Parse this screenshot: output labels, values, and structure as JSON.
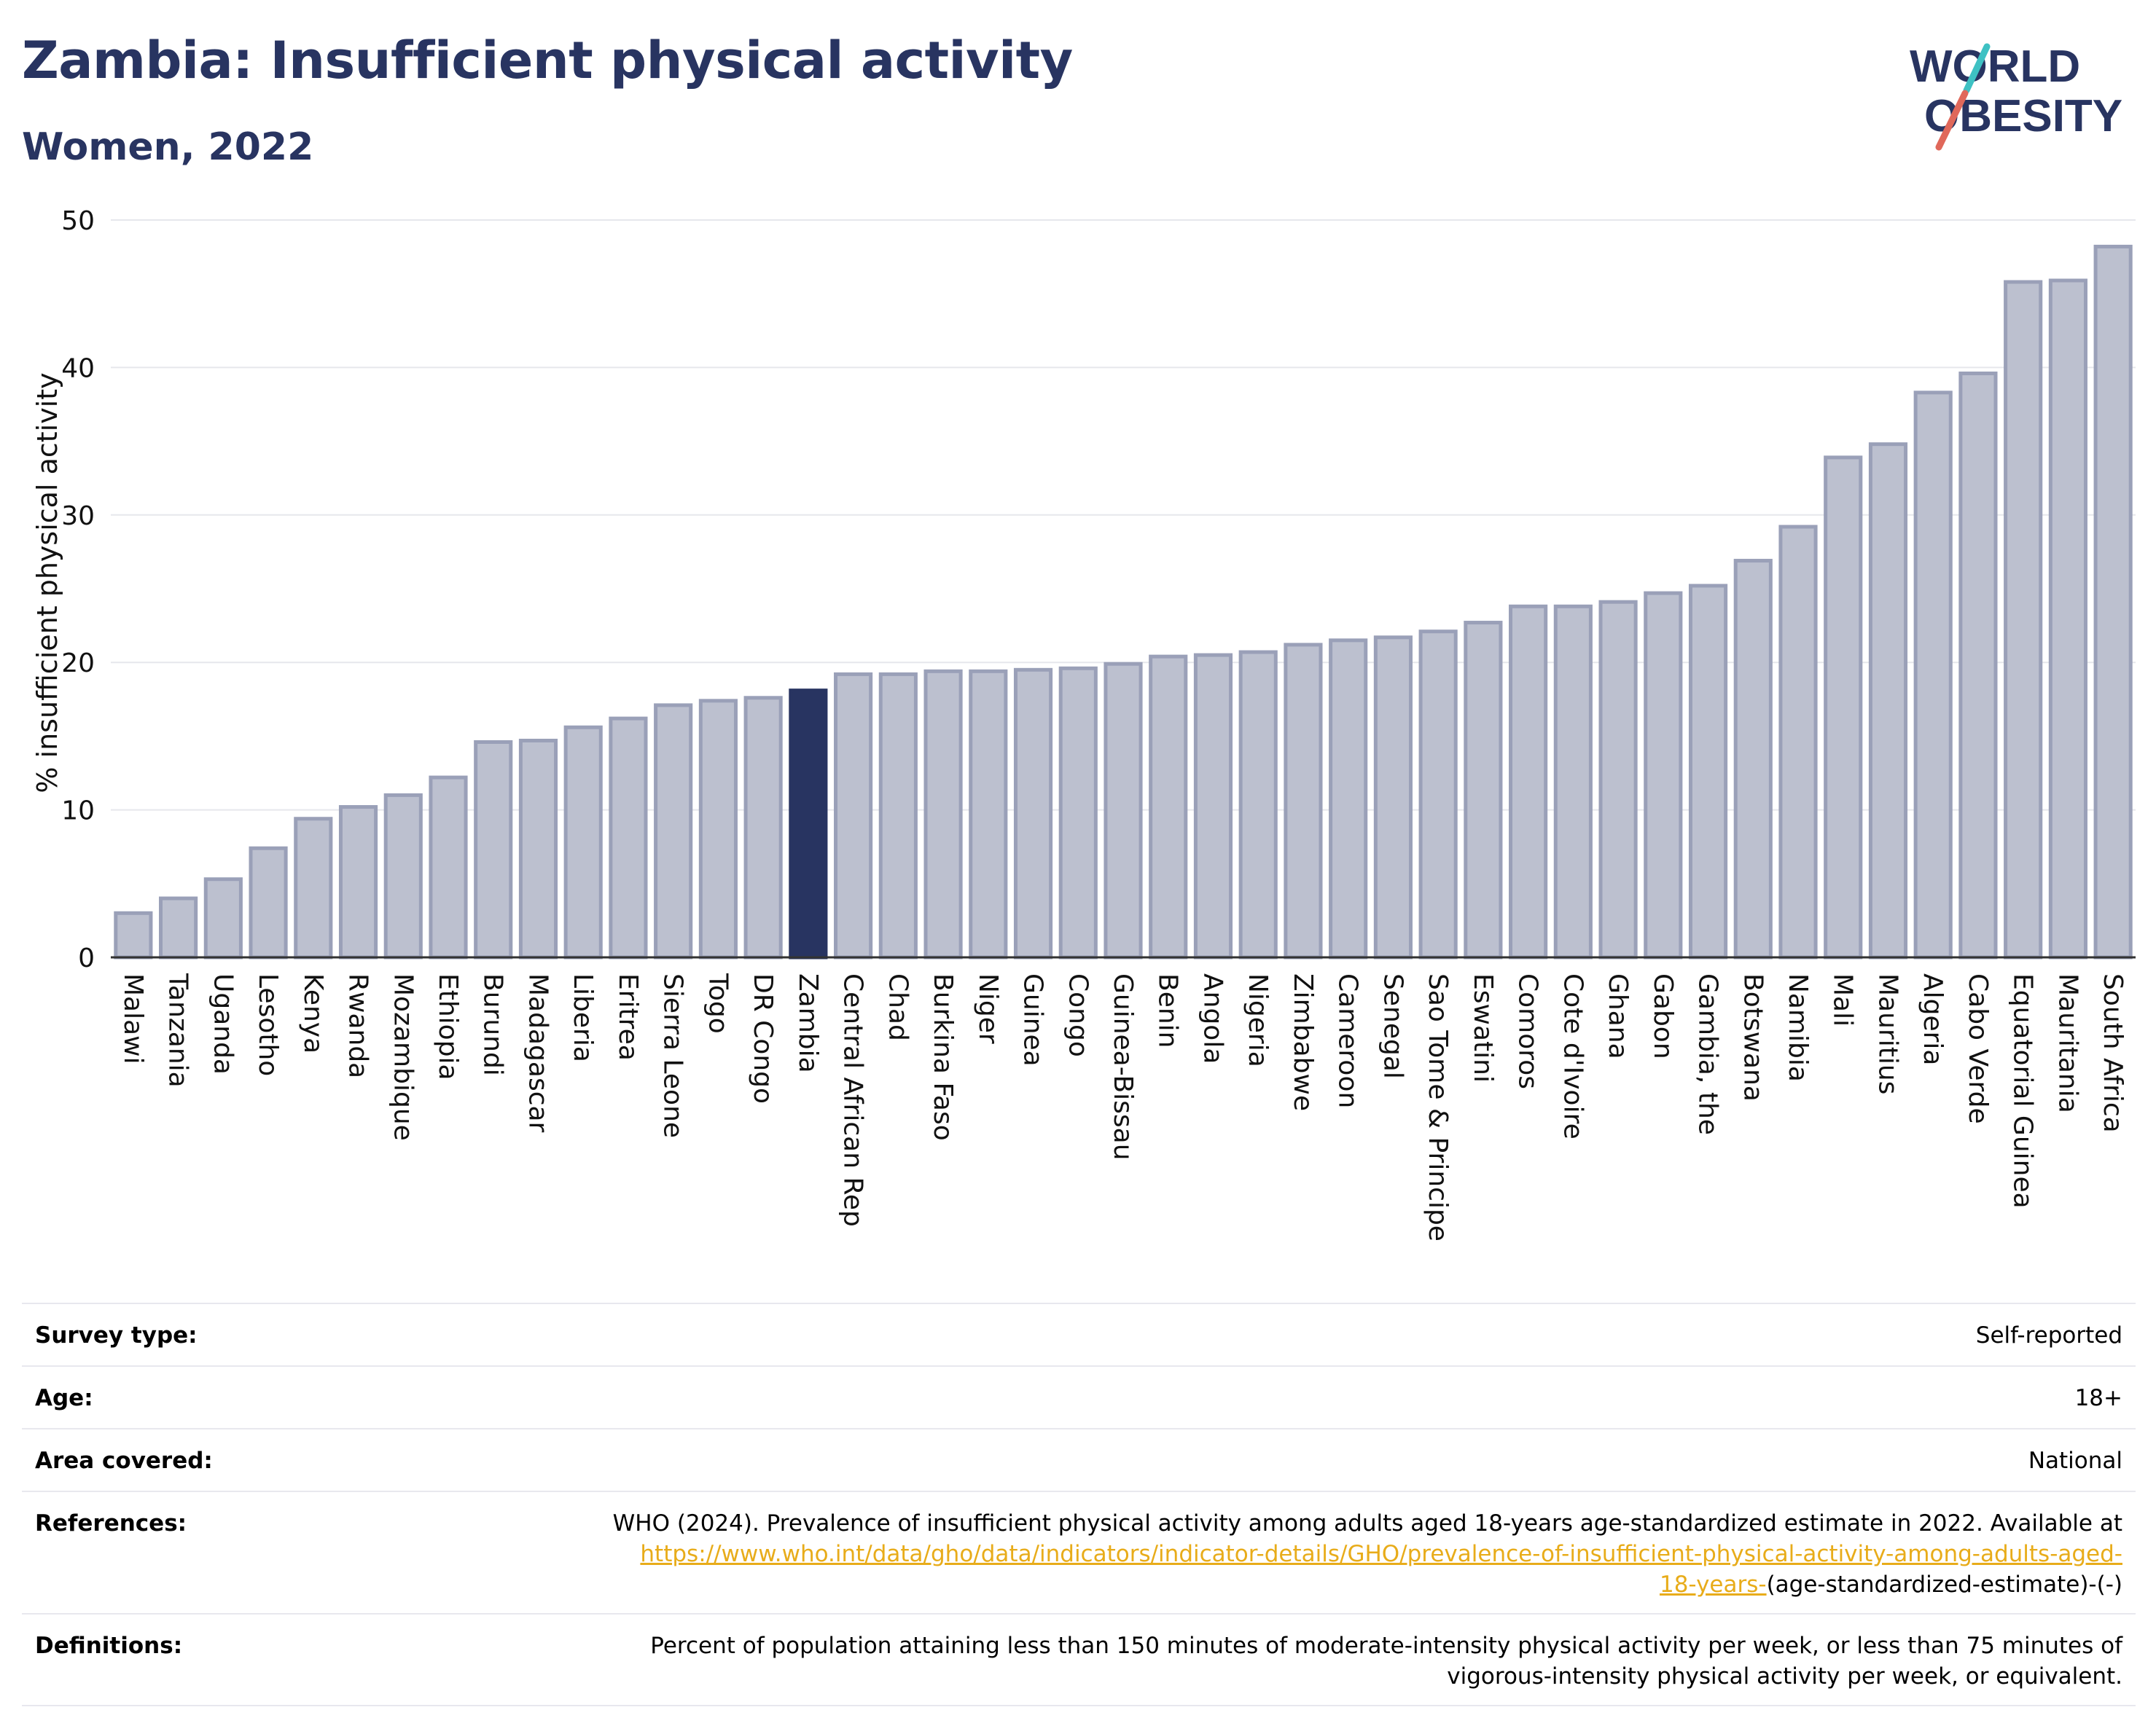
{
  "header": {
    "title": "Zambia: Insufficient physical activity",
    "subtitle": "Women, 2022"
  },
  "logo": {
    "line1": "WORLD",
    "line2": "OBESITY"
  },
  "colors": {
    "title": "#283461",
    "bar_default": "#bcc0cf",
    "bar_default_stroke": "#9aa0b8",
    "bar_highlight": "#283461",
    "logo_slash_teal": "#3ec1c3",
    "logo_slash_red": "#e0685a",
    "link": "#e8ac1a"
  },
  "chart_data": {
    "type": "bar",
    "title": "Zambia: Insufficient physical activity",
    "subtitle": "Women, 2022",
    "ylabel": "% insufficient physical activity",
    "xlabel": "",
    "ylim": [
      0,
      50
    ],
    "yticks": [
      0,
      10,
      20,
      30,
      40,
      50
    ],
    "grid": true,
    "highlight": "Zambia",
    "categories": [
      "Malawi",
      "Tanzania",
      "Uganda",
      "Lesotho",
      "Kenya",
      "Rwanda",
      "Mozambique",
      "Ethiopia",
      "Burundi",
      "Madagascar",
      "Liberia",
      "Eritrea",
      "Sierra Leone",
      "Togo",
      "DR Congo",
      "Zambia",
      "Central African Rep",
      "Chad",
      "Burkina Faso",
      "Niger",
      "Guinea",
      "Congo",
      "Guinea-Bissau",
      "Benin",
      "Angola",
      "Nigeria",
      "Zimbabwe",
      "Cameroon",
      "Senegal",
      "Sao Tome & Principe",
      "Eswatini",
      "Comoros",
      "Cote d'Ivoire",
      "Ghana",
      "Gabon",
      "Gambia, the",
      "Botswana",
      "Namibia",
      "Mali",
      "Mauritius",
      "Algeria",
      "Cabo Verde",
      "Equatorial Guinea",
      "Mauritania",
      "South Africa"
    ],
    "values": [
      3.0,
      4.0,
      5.3,
      7.4,
      9.4,
      10.2,
      11.0,
      12.2,
      14.6,
      14.7,
      15.6,
      16.2,
      17.1,
      17.4,
      17.6,
      18.1,
      19.2,
      19.2,
      19.4,
      19.4,
      19.5,
      19.6,
      19.9,
      20.4,
      20.5,
      20.7,
      21.2,
      21.5,
      21.7,
      22.1,
      22.7,
      23.8,
      23.8,
      24.1,
      24.7,
      25.2,
      26.9,
      29.2,
      33.9,
      34.8,
      38.3,
      39.6,
      45.8,
      45.9,
      48.2
    ]
  },
  "info": {
    "survey_type_label": "Survey type:",
    "survey_type_value": "Self-reported",
    "age_label": "Age:",
    "age_value": "18+",
    "area_label": "Area covered:",
    "area_value": "National",
    "references_label": "References:",
    "references_text": "WHO (2024). Prevalence of insufficient physical activity among adults aged 18-years age-standardized estimate in 2022. Available at",
    "references_link_line1": "https://www.who.int/data/gho/data/indicators/indicator-details/GHO/prevalence-of-insufficient-physical-activity-among-adults-aged-",
    "references_link_line2": "18-years-",
    "references_suffix": "(age-standardized-estimate)-(-)",
    "definitions_label": "Definitions:",
    "definitions_line1": "Percent of population attaining less than 150 minutes of moderate-intensity physical activity per week, or less than 75 minutes of",
    "definitions_line2": "vigorous-intensity physical activity per week, or equivalent."
  }
}
